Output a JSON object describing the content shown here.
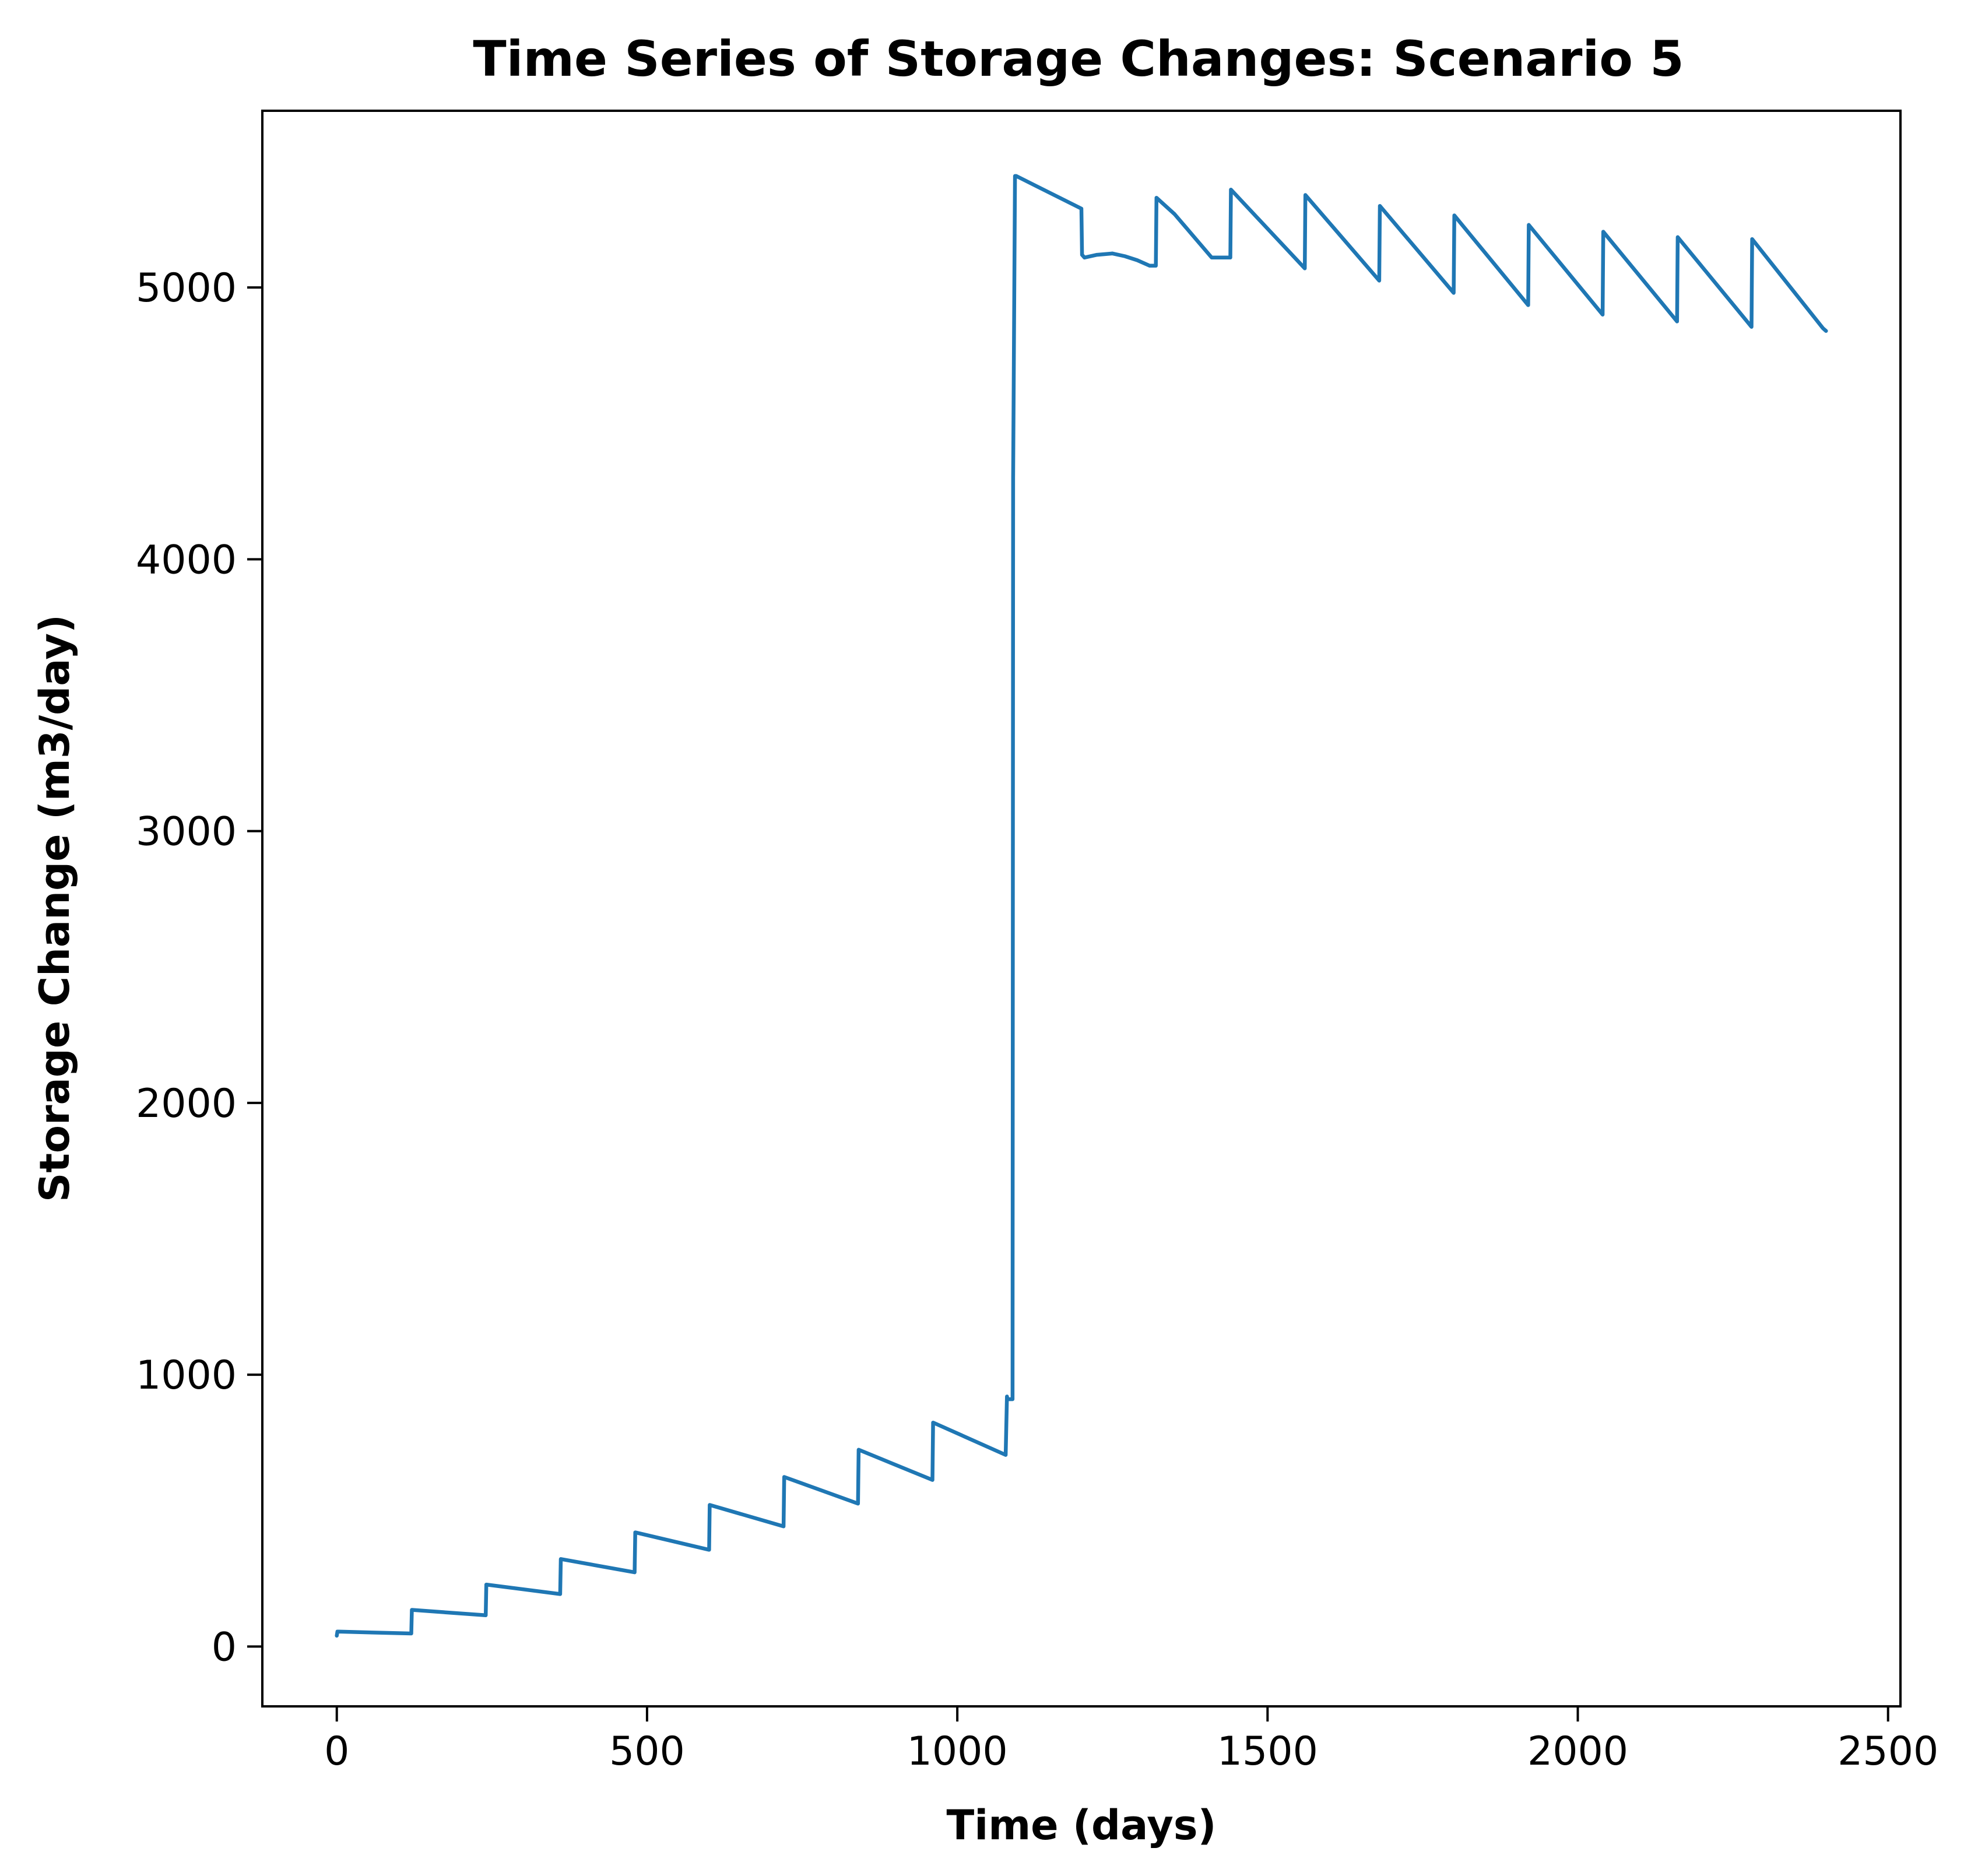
{
  "chart_data": {
    "type": "line",
    "title": "Time Series of Storage Changes: Scenario 5",
    "xlabel": "Time (days)",
    "ylabel": "Storage Change (m3/day)",
    "xlim": [
      -120,
      2520
    ],
    "ylim": [
      -220,
      5650
    ],
    "xticks": [
      0,
      500,
      1000,
      1500,
      2000,
      2500
    ],
    "yticks": [
      0,
      1000,
      2000,
      3000,
      4000,
      5000
    ],
    "xtick_labels": [
      "0",
      "500",
      "1000",
      "1500",
      "2000",
      "2500"
    ],
    "ytick_labels": [
      "0",
      "1000",
      "2000",
      "3000",
      "4000",
      "5000"
    ],
    "grid": false,
    "legend": "none",
    "series_color": "#1f77b4",
    "series": [
      {
        "x": [
          0,
          1,
          3,
          120,
          121,
          240,
          241,
          360,
          361,
          480,
          481,
          600,
          601,
          720,
          721,
          840,
          841,
          960,
          961,
          1078,
          1080,
          1081,
          1089,
          1090,
          1093,
          1095,
          1200,
          1201,
          1205,
          1225,
          1250,
          1270,
          1290,
          1310,
          1320,
          1321,
          1350,
          1380,
          1410,
          1440,
          1441,
          1560,
          1561,
          1680,
          1681,
          1800,
          1801,
          1920,
          1921,
          2040,
          2041,
          2160,
          2161,
          2280,
          2281,
          2395,
          2400
        ],
        "y": [
          40,
          55,
          55,
          48,
          135,
          115,
          228,
          193,
          322,
          273,
          420,
          356,
          521,
          442,
          624,
          526,
          724,
          613,
          824,
          705,
          920,
          910,
          910,
          4300,
          5410,
          5410,
          5290,
          5120,
          5110,
          5120,
          5125,
          5115,
          5100,
          5080,
          5080,
          5330,
          5270,
          5190,
          5110,
          5110,
          5360,
          5070,
          5340,
          5025,
          5300,
          4980,
          5265,
          4935,
          5230,
          4900,
          5205,
          4875,
          5185,
          4855,
          5178,
          4850,
          4840
        ]
      }
    ]
  }
}
